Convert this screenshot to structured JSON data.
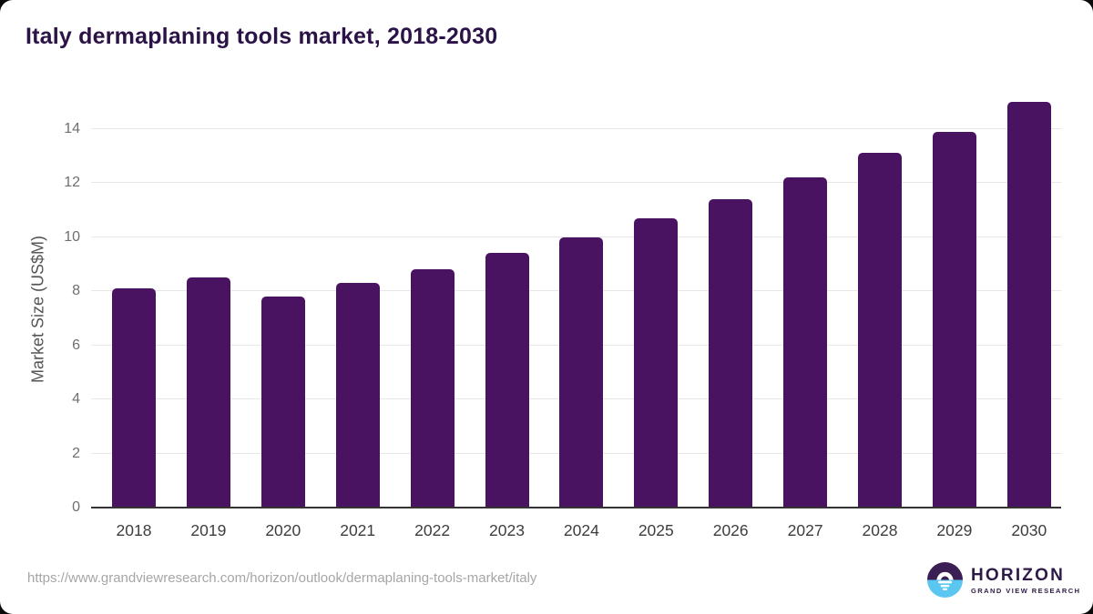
{
  "page_title": "Italy dermaplaning tools market, 2018-2030",
  "chart_data": {
    "type": "bar",
    "title": "Italy dermaplaning tools market, 2018-2030",
    "xlabel": "",
    "ylabel": "Market Size (US$M)",
    "categories": [
      "2018",
      "2019",
      "2020",
      "2021",
      "2022",
      "2023",
      "2024",
      "2025",
      "2026",
      "2027",
      "2028",
      "2029",
      "2030"
    ],
    "values": [
      8.1,
      8.5,
      7.8,
      8.3,
      8.8,
      9.4,
      10.0,
      10.7,
      11.4,
      12.2,
      13.1,
      13.9,
      15.0
    ],
    "ylim": [
      0,
      15.4
    ],
    "yticks": [
      0,
      2,
      4,
      6,
      8,
      10,
      12,
      14
    ],
    "grid": true,
    "legend": false,
    "bar_color": "#491361"
  },
  "colors": {
    "title_text": "#2b1347",
    "bar": "#491361",
    "gridline": "#e7e7e7",
    "axis_line": "#333333",
    "y_tick_text": "#6f6f6f",
    "x_tick_text": "#3d3d3d",
    "url_text": "#a6a6a6",
    "logo_purple": "#3b1e53",
    "logo_blue": "#5bc7f1"
  },
  "footer": {
    "source_url": "https://www.grandviewresearch.com/horizon/outlook/dermaplaning-tools-market/italy",
    "logo": {
      "name": "HORIZON",
      "subtitle": "GRAND VIEW RESEARCH"
    }
  }
}
